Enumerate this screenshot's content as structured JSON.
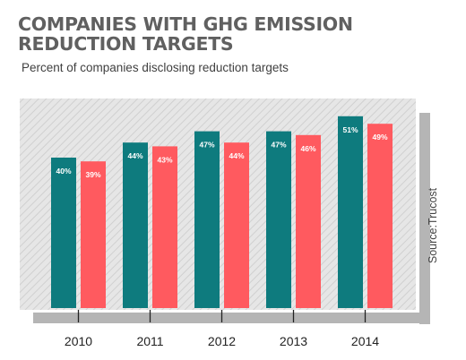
{
  "title_lines": [
    "COMPANIES WITH GHG EMISSION",
    "REDUCTION TARGETS"
  ],
  "subtitle": "Percent of companies disclosing reduction targets",
  "source": "Source:Trucost",
  "colors": {
    "series_a": "#0e7b7e",
    "series_b": "#ff5a5f",
    "plot_bg": "#e6e6e6",
    "hatch": "#d0d0d0",
    "axis": "#b5b5b5"
  },
  "chart_data": {
    "type": "bar",
    "categories": [
      "2010",
      "2011",
      "2012",
      "2013",
      "2014"
    ],
    "series": [
      {
        "values": [
          40,
          44,
          47,
          47,
          51
        ],
        "labels": [
          "40%",
          "44%",
          "47%",
          "47%",
          "51%"
        ]
      },
      {
        "values": [
          39,
          43,
          44,
          46,
          49
        ],
        "labels": [
          "39%",
          "43%",
          "44%",
          "46%",
          "49%"
        ]
      }
    ],
    "title": "COMPANIES WITH GHG EMISSION REDUCTION TARGETS",
    "subtitle": "Percent of companies disclosing reduction targets",
    "xlabel": "",
    "ylabel": "",
    "grid": false,
    "legend": "none"
  }
}
